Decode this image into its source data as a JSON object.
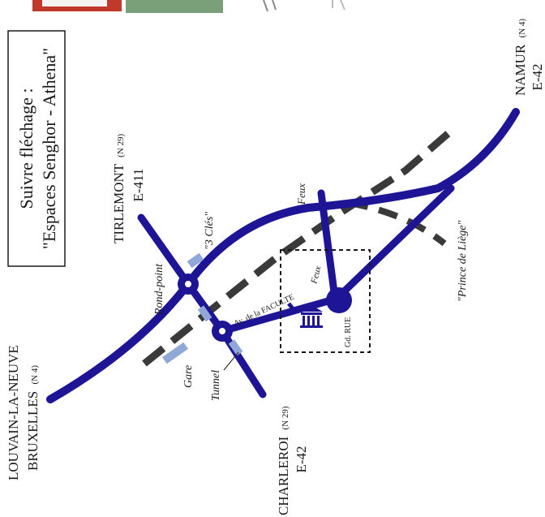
{
  "colors": {
    "road": "#1e1496",
    "rail": "#3a3a3a",
    "station_marker": "#8fa8d8",
    "text": "#1a1a1a",
    "thumb_red": "#c0392b",
    "thumb_green": "#6a9a6a"
  },
  "signage_box": {
    "line1": "Suivre fléchage :",
    "line2": "\"Espaces Senghor - Athena\""
  },
  "directions": {
    "tirlemont": {
      "name": "TIRLEMONT",
      "road": "(N 29)",
      "highway": "E-411"
    },
    "namur": {
      "name": "NAMUR",
      "road": "(N 4)",
      "highway": "E-42"
    },
    "louvain": {
      "line1": "LOUVAIN-LA-NEUVE",
      "name": "BRUXELLES",
      "road": "(N 4)"
    },
    "charleroi": {
      "name": "CHARLEROI",
      "road": "(N 29)",
      "highway": "E-42"
    }
  },
  "labels": {
    "trois_cles": "\"3 Clés\"",
    "rond_point": "Rond-point",
    "gare": "Gare",
    "tunnel": "Tunnel",
    "avenue": "Av. de la FACULTE",
    "feux_top": "Feux",
    "feux_mid": "Feux",
    "grand_rue": "Gd. RUE",
    "prince_de_liege": "\"Prince de Liège\""
  }
}
